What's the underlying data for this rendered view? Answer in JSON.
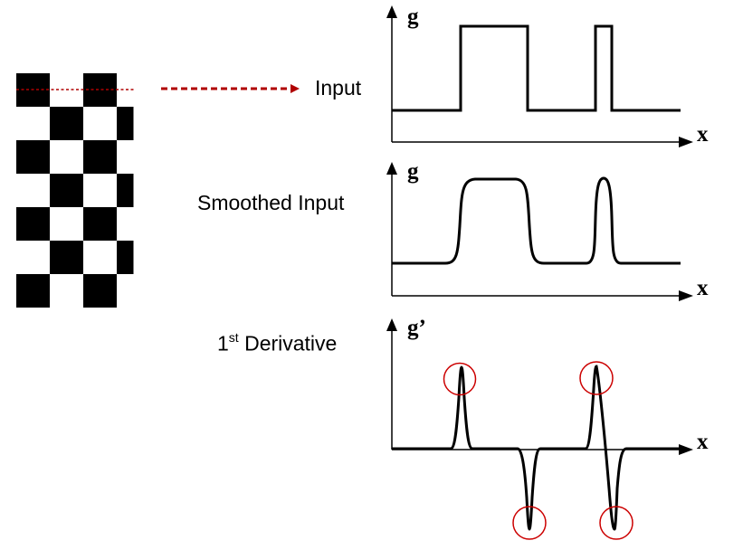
{
  "labels": {
    "input": "Input",
    "smoothed": "Smoothed Input",
    "derivative_num": "1",
    "derivative_sup": "st",
    "derivative_rest": " Derivative"
  },
  "axes": {
    "g_top": "g",
    "g_mid": "g",
    "g_prime": "g’",
    "x_top": "x",
    "x_mid": "x",
    "x_bot": "x"
  },
  "colors": {
    "ink": "#000000",
    "highlight": "#cc0000",
    "scanline": "#b00000"
  },
  "checkerboard": {
    "rows": 7,
    "cols": 4,
    "visible_cols": 3.5
  }
}
